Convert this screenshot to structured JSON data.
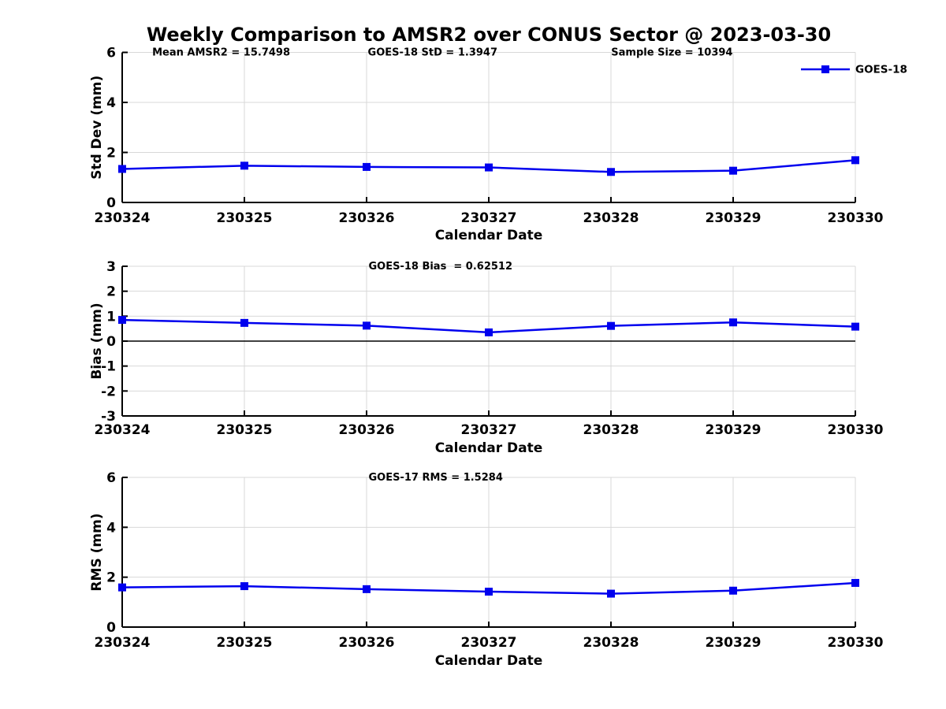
{
  "title": "Weekly Comparison to AMSR2 over CONUS Sector @ 2023-03-30",
  "x_axis_label": "Calendar Date",
  "legend": {
    "label": "GOES-18"
  },
  "colors": {
    "line": "#0000EE",
    "marker": "#0000EE",
    "grid": "#d8d8d8",
    "axis": "#000000",
    "zero_line": "#000000",
    "text": "#000000",
    "background": "#ffffff"
  },
  "chart_data": [
    {
      "type": "line",
      "name": "std-dev",
      "title": "",
      "ylabel": "Std Dev (mm)",
      "xlabel": "Calendar Date",
      "categories": [
        "230324",
        "230325",
        "230326",
        "230327",
        "230328",
        "230329",
        "230330"
      ],
      "series": [
        {
          "name": "GOES-18",
          "values": [
            1.34,
            1.47,
            1.42,
            1.4,
            1.22,
            1.27,
            1.69
          ]
        }
      ],
      "ylim": [
        0,
        6
      ],
      "yticks": [
        0,
        2,
        4,
        6
      ],
      "grid": true,
      "legend": {
        "label": "GOES-18",
        "position": "top-right"
      },
      "annotations": [
        "Mean AMSR2 = 15.7498",
        "GOES-18 StD = 1.3947",
        "Sample Size = 10394"
      ]
    },
    {
      "type": "line",
      "name": "bias",
      "title": "",
      "ylabel": "Bias (mm)",
      "xlabel": "Calendar Date",
      "categories": [
        "230324",
        "230325",
        "230326",
        "230327",
        "230328",
        "230329",
        "230330"
      ],
      "series": [
        {
          "name": "GOES-18",
          "values": [
            0.85,
            0.73,
            0.62,
            0.35,
            0.61,
            0.75,
            0.58
          ]
        }
      ],
      "ylim": [
        -3,
        3
      ],
      "yticks": [
        -3,
        -2,
        -1,
        0,
        1,
        2,
        3
      ],
      "grid": true,
      "zero_line": true,
      "annotations": [
        "GOES-18 Bias  = 0.62512"
      ]
    },
    {
      "type": "line",
      "name": "rms",
      "title": "",
      "ylabel": "RMS (mm)",
      "xlabel": "Calendar Date",
      "categories": [
        "230324",
        "230325",
        "230326",
        "230327",
        "230328",
        "230329",
        "230330"
      ],
      "series": [
        {
          "name": "GOES-18",
          "values": [
            1.59,
            1.64,
            1.52,
            1.42,
            1.34,
            1.46,
            1.77
          ]
        }
      ],
      "ylim": [
        0,
        6
      ],
      "yticks": [
        0,
        2,
        4,
        6
      ],
      "grid": true,
      "annotations": [
        "GOES-17 RMS = 1.5284"
      ]
    }
  ]
}
